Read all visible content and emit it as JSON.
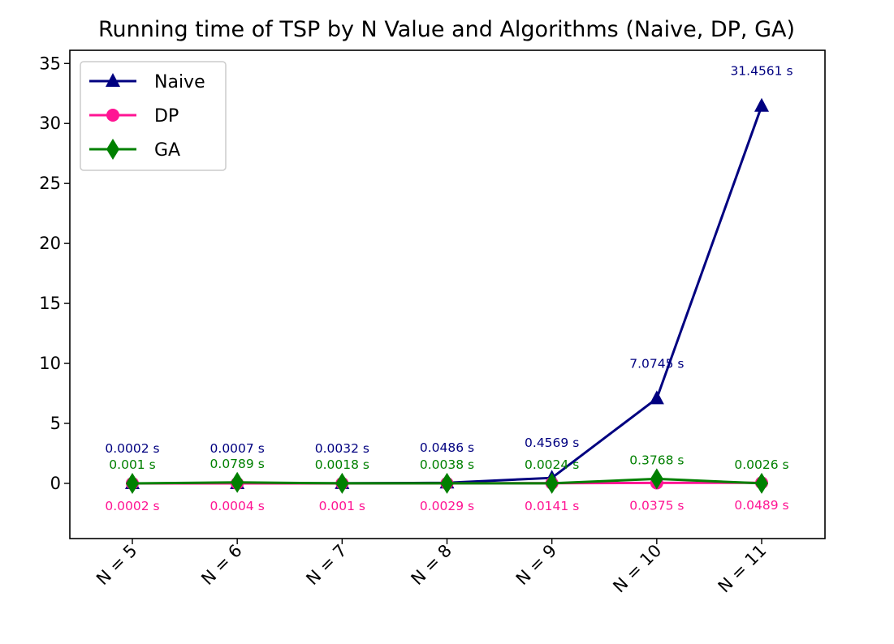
{
  "chart_data": {
    "type": "line",
    "title": "Running time of TSP by N Value and Algorithms (Naive, DP, GA)",
    "xlabel": "",
    "ylabel": "",
    "categories": [
      "N = 5",
      "N = 6",
      "N = 7",
      "N = 8",
      "N = 9",
      "N = 10",
      "N = 11"
    ],
    "ylim": [
      -4.6,
      36.1
    ],
    "yticks": [
      0,
      5,
      10,
      15,
      20,
      25,
      30,
      35
    ],
    "grid": false,
    "legend_position": "upper-left",
    "series": [
      {
        "name": "Naive",
        "color": "#000080",
        "marker": "triangle",
        "values": [
          0.0002,
          0.0007,
          0.0032,
          0.0486,
          0.4569,
          7.0745,
          31.4561
        ],
        "labels": [
          "0.0002 s",
          "0.0007 s",
          "0.0032 s",
          "0.0486 s",
          "0.4569 s",
          "7.0745 s",
          "31.4561 s"
        ]
      },
      {
        "name": "DP",
        "color": "#ff1493",
        "marker": "circle",
        "values": [
          0.0002,
          0.0004,
          0.001,
          0.0029,
          0.0141,
          0.0375,
          0.0489
        ],
        "labels": [
          "0.0002 s",
          "0.0004 s",
          "0.001 s",
          "0.0029 s",
          "0.0141 s",
          "0.0375 s",
          "0.0489 s"
        ]
      },
      {
        "name": "GA",
        "color": "#008000",
        "marker": "diamond",
        "values": [
          0.001,
          0.0789,
          0.0018,
          0.0038,
          0.0024,
          0.3768,
          0.0026
        ],
        "labels": [
          "0.001 s",
          "0.0789 s",
          "0.0018 s",
          "0.0038 s",
          "0.0024 s",
          "0.3768 s",
          "0.0026 s"
        ]
      }
    ]
  }
}
